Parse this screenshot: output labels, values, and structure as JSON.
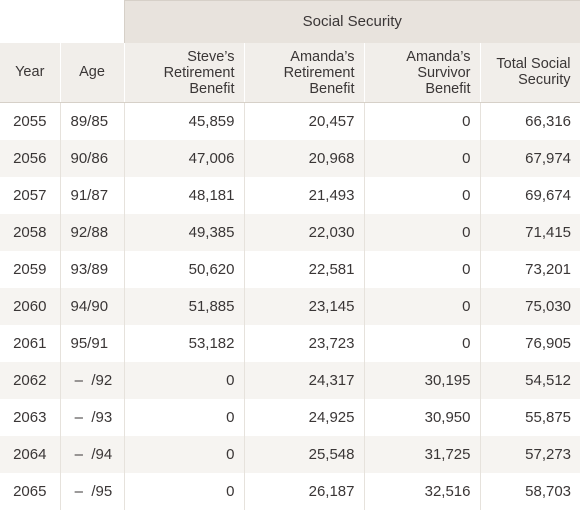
{
  "table": {
    "group_header": "Social Security",
    "columns": {
      "year": "Year",
      "age": "Age",
      "steve_ret": [
        "Steve’s",
        "Retirement",
        "Benefit"
      ],
      "amanda_ret": [
        "Amanda’s",
        "Retirement",
        "Benefit"
      ],
      "amanda_surv": [
        "Amanda’s",
        "Survivor",
        "Benefit"
      ],
      "total": [
        "Total Social",
        "Security"
      ]
    },
    "rows": [
      {
        "year": "2055",
        "age": "89/85",
        "steve": "45,859",
        "amanda_ret": "20,457",
        "amanda_surv": "0",
        "total": "66,316"
      },
      {
        "year": "2056",
        "age": "90/86",
        "steve": "47,006",
        "amanda_ret": "20,968",
        "amanda_surv": "0",
        "total": "67,974"
      },
      {
        "year": "2057",
        "age": "91/87",
        "steve": "48,181",
        "amanda_ret": "21,493",
        "amanda_surv": "0",
        "total": "69,674"
      },
      {
        "year": "2058",
        "age": "92/88",
        "steve": "49,385",
        "amanda_ret": "22,030",
        "amanda_surv": "0",
        "total": "71,415"
      },
      {
        "year": "2059",
        "age": "93/89",
        "steve": "50,620",
        "amanda_ret": "22,581",
        "amanda_surv": "0",
        "total": "73,201"
      },
      {
        "year": "2060",
        "age": "94/90",
        "steve": "51,885",
        "amanda_ret": "23,145",
        "amanda_surv": "0",
        "total": "75,030"
      },
      {
        "year": "2061",
        "age": "95/91",
        "steve": "53,182",
        "amanda_ret": "23,723",
        "amanda_surv": "0",
        "total": "76,905"
      },
      {
        "year": "2062",
        "age": " –  /92",
        "steve": "0",
        "amanda_ret": "24,317",
        "amanda_surv": "30,195",
        "total": "54,512"
      },
      {
        "year": "2063",
        "age": " –  /93",
        "steve": "0",
        "amanda_ret": "24,925",
        "amanda_surv": "30,950",
        "total": "55,875"
      },
      {
        "year": "2064",
        "age": " –  /94",
        "steve": "0",
        "amanda_ret": "25,548",
        "amanda_surv": "31,725",
        "total": "57,273"
      },
      {
        "year": "2065",
        "age": " –  /95",
        "steve": "0",
        "amanda_ret": "26,187",
        "amanda_surv": "32,516",
        "total": "58,703"
      }
    ]
  }
}
